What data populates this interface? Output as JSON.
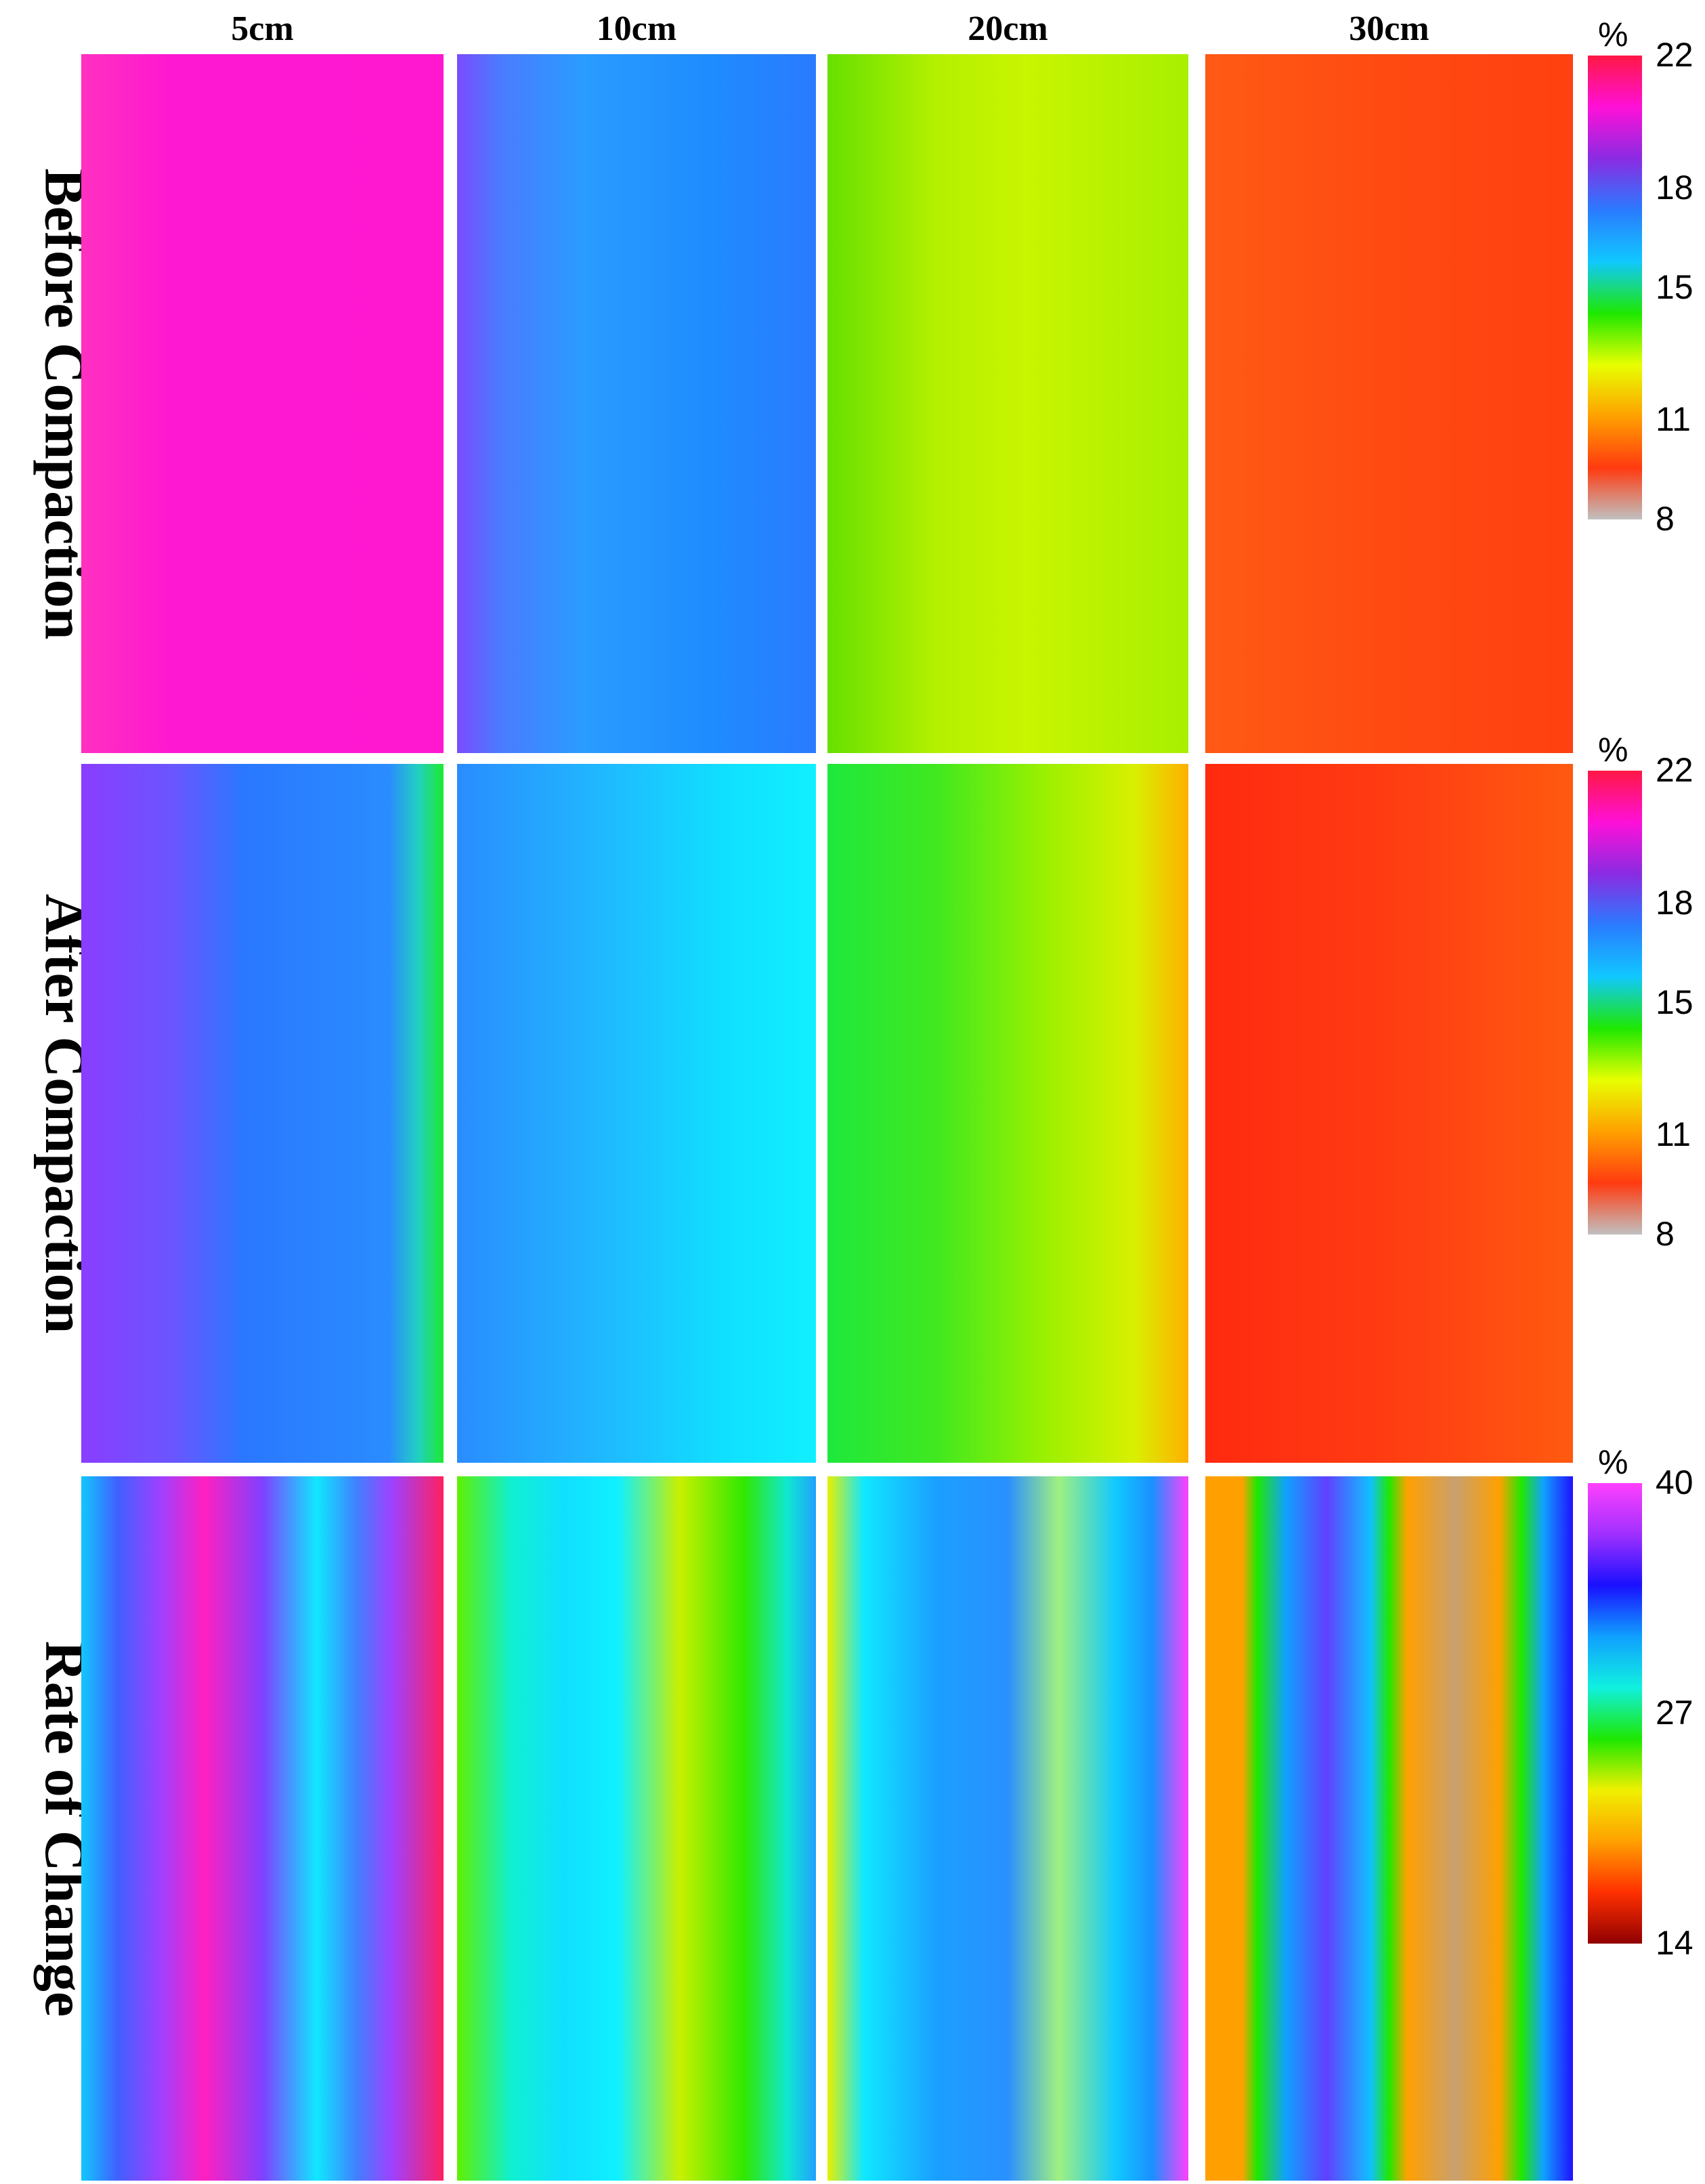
{
  "chart_data": {
    "type": "heatmap",
    "columns": [
      "5cm",
      "10cm",
      "20cm",
      "30cm"
    ],
    "rows": [
      {
        "name": "Before Compaction",
        "colorbar": {
          "unit": "%",
          "ticks": [
            22,
            18,
            15,
            11,
            8
          ],
          "range": [
            8,
            22
          ],
          "colors": [
            "#ff1744",
            "#ff10d8",
            "#8a2be2",
            "#2a7bff",
            "#10c8ff",
            "#1ee800",
            "#e8ff00",
            "#ffa000",
            "#ff3a10",
            "#c0c0c0"
          ]
        },
        "panels": [
          {
            "column": "5cm",
            "dominant_color": "#ff1acc",
            "approx_value_percent": 20.5,
            "stops": [
              [
                "#ff30c0",
                0
              ],
              [
                "#ff18d2",
                0.25
              ],
              [
                "#ff18d0",
                1
              ]
            ]
          },
          {
            "column": "10cm",
            "dominant_color": "#1e90ff",
            "approx_value_percent": 16.5,
            "stops": [
              [
                "#7a4bff",
                0
              ],
              [
                "#4b7bff",
                0.12
              ],
              [
                "#2a9cff",
                0.35
              ],
              [
                "#1e8cff",
                0.7
              ],
              [
                "#2a7bff",
                1
              ]
            ]
          },
          {
            "column": "20cm",
            "dominant_color": "#aef000",
            "approx_value_percent": 12.5,
            "stops": [
              [
                "#66e000",
                0
              ],
              [
                "#b4f000",
                0.3
              ],
              [
                "#c8f500",
                0.55
              ],
              [
                "#a8ef00",
                1
              ]
            ]
          },
          {
            "column": "30cm",
            "dominant_color": "#ff4a10",
            "approx_value_percent": 10.0,
            "stops": [
              [
                "#ff5a14",
                0
              ],
              [
                "#ff4a12",
                0.5
              ],
              [
                "#ff4010",
                1
              ]
            ]
          }
        ]
      },
      {
        "name": "After Compaction",
        "colorbar": {
          "unit": "%",
          "ticks": [
            22,
            18,
            15,
            11,
            8
          ],
          "range": [
            8,
            22
          ],
          "colors": [
            "#ff1744",
            "#ff10d8",
            "#8a2be2",
            "#2a7bff",
            "#10c8ff",
            "#1ee800",
            "#e8ff00",
            "#ffa000",
            "#ff3a10",
            "#c0c0c0"
          ]
        },
        "panels": [
          {
            "column": "5cm",
            "dominant_color": "#2a7bff",
            "approx_value_percent": 17.0,
            "stops": [
              [
                "#8a3dff",
                0
              ],
              [
                "#6b55ff",
                0.25
              ],
              [
                "#2a78ff",
                0.45
              ],
              [
                "#2a8cff",
                0.85
              ],
              [
                "#22d0c0",
                0.93
              ],
              [
                "#1eea30",
                1
              ]
            ]
          },
          {
            "column": "10cm",
            "dominant_color": "#20c0ff",
            "approx_value_percent": 16.0,
            "stops": [
              [
                "#2a8cff",
                0
              ],
              [
                "#20b8ff",
                0.4
              ],
              [
                "#10e0ff",
                0.75
              ],
              [
                "#10f0ff",
                1
              ]
            ]
          },
          {
            "column": "20cm",
            "dominant_color": "#60e800",
            "approx_value_percent": 13.0,
            "stops": [
              [
                "#1ee83c",
                0
              ],
              [
                "#40e820",
                0.3
              ],
              [
                "#9af000",
                0.6
              ],
              [
                "#d8f000",
                0.85
              ],
              [
                "#ffb000",
                1
              ]
            ]
          },
          {
            "column": "30cm",
            "dominant_color": "#ff3a10",
            "approx_value_percent": 10.0,
            "stops": [
              [
                "#ff2a10",
                0
              ],
              [
                "#ff3c12",
                0.5
              ],
              [
                "#ff5a10",
                1
              ]
            ]
          }
        ]
      },
      {
        "name": "Rate of Change",
        "colorbar": {
          "unit": "%",
          "ticks": [
            40,
            27,
            14
          ],
          "range": [
            14,
            40
          ],
          "colors": [
            "#ff40ff",
            "#a030ff",
            "#1a10ff",
            "#10a0ff",
            "#10f0e0",
            "#1ee800",
            "#f0f000",
            "#ffa000",
            "#ff3000",
            "#900000"
          ]
        },
        "panels": [
          {
            "column": "5cm",
            "dominant_color": "#a040ff",
            "approx_value_percent": 34.0,
            "stops": [
              [
                "#10c8ff",
                0
              ],
              [
                "#4060ff",
                0.1
              ],
              [
                "#a040ff",
                0.22
              ],
              [
                "#ff20c0",
                0.34
              ],
              [
                "#8040ff",
                0.5
              ],
              [
                "#10e8ff",
                0.65
              ],
              [
                "#4080ff",
                0.76
              ],
              [
                "#a040ff",
                0.86
              ],
              [
                "#ff2060",
                1
              ]
            ]
          },
          {
            "column": "10cm",
            "dominant_color": "#20f040",
            "approx_value_percent": 26.0,
            "stops": [
              [
                "#60f000",
                0
              ],
              [
                "#10f0d0",
                0.15
              ],
              [
                "#10e0ff",
                0.3
              ],
              [
                "#10f0ff",
                0.45
              ],
              [
                "#c8f000",
                0.62
              ],
              [
                "#30e800",
                0.8
              ],
              [
                "#10e8d0",
                0.92
              ],
              [
                "#20a0ff",
                1
              ]
            ]
          },
          {
            "column": "20cm",
            "dominant_color": "#1aa0ff",
            "approx_value_percent": 30.0,
            "stops": [
              [
                "#e8f000",
                0
              ],
              [
                "#10e8ff",
                0.1
              ],
              [
                "#1aa0ff",
                0.3
              ],
              [
                "#2a90ff",
                0.5
              ],
              [
                "#a0f080",
                0.64
              ],
              [
                "#10c8ff",
                0.8
              ],
              [
                "#1a90ff",
                0.9
              ],
              [
                "#ff40ff",
                1
              ]
            ]
          },
          {
            "column": "30cm",
            "dominant_color": "#ffa000",
            "approx_value_percent": 20.0,
            "stops": [
              [
                "#ffa000",
                0
              ],
              [
                "#ffa000",
                0.1
              ],
              [
                "#20e800",
                0.14
              ],
              [
                "#10a0ff",
                0.22
              ],
              [
                "#6040ff",
                0.33
              ],
              [
                "#10c0ff",
                0.45
              ],
              [
                "#20e800",
                0.5
              ],
              [
                "#ffa000",
                0.55
              ],
              [
                "#c8a070",
                0.68
              ],
              [
                "#ffa000",
                0.8
              ],
              [
                "#20e800",
                0.86
              ],
              [
                "#10a0ff",
                0.92
              ],
              [
                "#2010ff",
                1
              ]
            ]
          }
        ]
      }
    ]
  }
}
